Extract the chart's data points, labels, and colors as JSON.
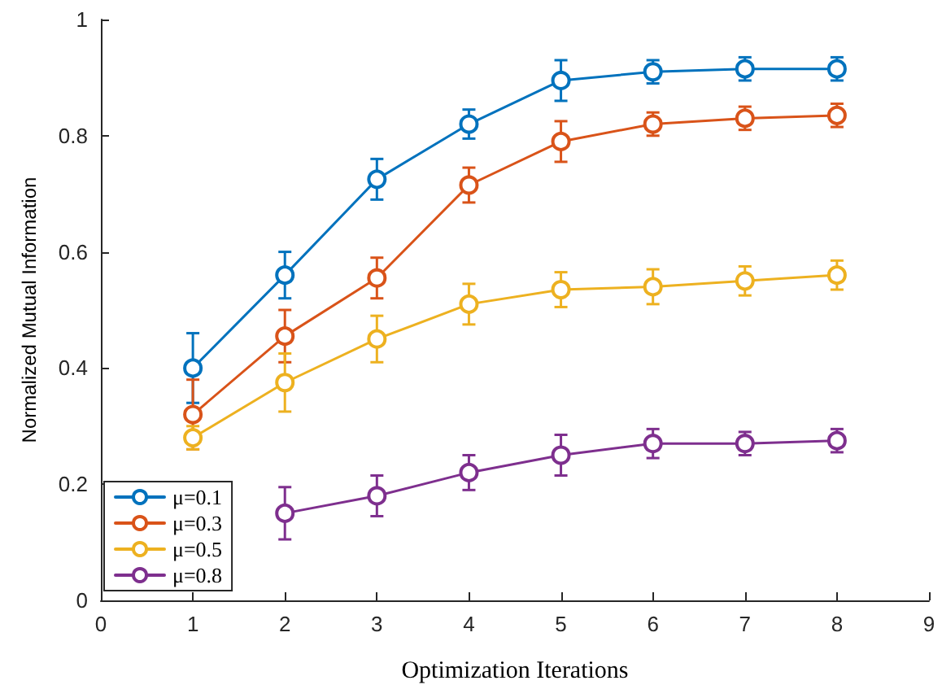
{
  "chart_data": {
    "type": "line",
    "xlabel": "Optimization Iterations",
    "ylabel": "Normalized Mutual Information",
    "x": [
      1,
      2,
      3,
      4,
      5,
      6,
      7,
      8
    ],
    "series": [
      {
        "name": "μ=0.1",
        "color": "#0072bd",
        "values": [
          0.4,
          0.56,
          0.725,
          0.82,
          0.895,
          0.91,
          0.915,
          0.915
        ],
        "errors": [
          0.06,
          0.04,
          0.035,
          0.025,
          0.035,
          0.02,
          0.02,
          0.02
        ]
      },
      {
        "name": "μ=0.3",
        "color": "#d95319",
        "values": [
          0.32,
          0.455,
          0.555,
          0.715,
          0.79,
          0.82,
          0.83,
          0.835
        ],
        "errors": [
          0.06,
          0.045,
          0.035,
          0.03,
          0.035,
          0.02,
          0.02,
          0.02
        ]
      },
      {
        "name": "μ=0.5",
        "color": "#edb120",
        "values": [
          0.28,
          0.375,
          0.45,
          0.51,
          0.535,
          0.54,
          0.55,
          0.56
        ],
        "errors": [
          0.02,
          0.05,
          0.04,
          0.035,
          0.03,
          0.03,
          0.025,
          0.025
        ]
      },
      {
        "name": "μ=0.8",
        "color": "#7e2f8e",
        "values": [
          null,
          0.15,
          0.18,
          0.22,
          0.25,
          0.27,
          0.27,
          0.275
        ],
        "errors": [
          null,
          0.045,
          0.035,
          0.03,
          0.035,
          0.025,
          0.02,
          0.02
        ]
      }
    ],
    "xlim": [
      0,
      9
    ],
    "xticks": [
      0,
      1,
      2,
      3,
      4,
      5,
      6,
      7,
      8,
      9
    ],
    "ylim": [
      0,
      1
    ],
    "yticks": [
      0,
      0.2,
      0.4,
      0.6,
      0.8,
      1
    ],
    "grid": false,
    "legend": "bottom left",
    "marker": "circle",
    "line_style": "solid"
  }
}
